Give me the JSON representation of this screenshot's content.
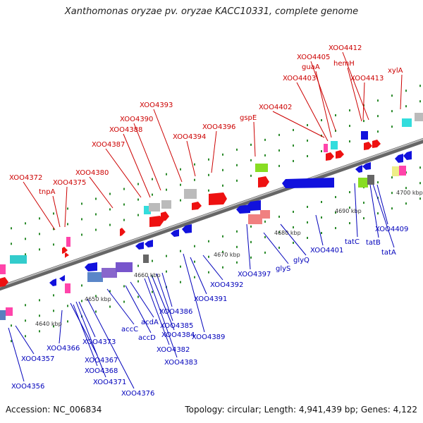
{
  "title": "Xanthomonas oryzae pv. oryzae KACC10331, complete genome",
  "accession_text": "Accession: NC_006834",
  "topology_text": "Topology: circular; Length: 4,941,439 bp; Genes: 4,122",
  "colors": {
    "forward_label": "#cc0000",
    "reverse_label": "#0000bb",
    "forward_gene": "#ee1111",
    "reverse_gene": "#1111dd",
    "scale_tick": "#2a8a2a",
    "backbone": "#888888"
  },
  "scale_labels": [
    "4640 kbp",
    "4650 kbp",
    "4660 kbp",
    "4670 kbp",
    "4680 kbp",
    "4690 kbp",
    "4700 kbp"
  ],
  "forward_labels": [
    "XOO4372",
    "tnpA",
    "XOO4375",
    "XOO4380",
    "XOO4387",
    "XOO4388",
    "XOO4390",
    "XOO4393",
    "XOO4394",
    "XOO4396",
    "gspE",
    "XOO4402",
    "XOO4403",
    "guaA",
    "XOO4405",
    "XOO4412",
    "hemH",
    "XOO4413",
    "xylA"
  ],
  "reverse_labels": [
    "XOO4356",
    "XOO4357",
    "XOO4366",
    "XOO4367",
    "XOO4368",
    "XOO4371",
    "XOO4373",
    "XOO4376",
    "accC",
    "accD",
    "acdA",
    "XOO4382",
    "XOO4383",
    "XOO4384",
    "XOO4385",
    "XOO4386",
    "XOO4389",
    "XOO4391",
    "XOO4392",
    "XOO4397",
    "glyS",
    "glyQ",
    "XOO4401",
    "tatC",
    "tatB",
    "tatA",
    "XOO4409"
  ]
}
